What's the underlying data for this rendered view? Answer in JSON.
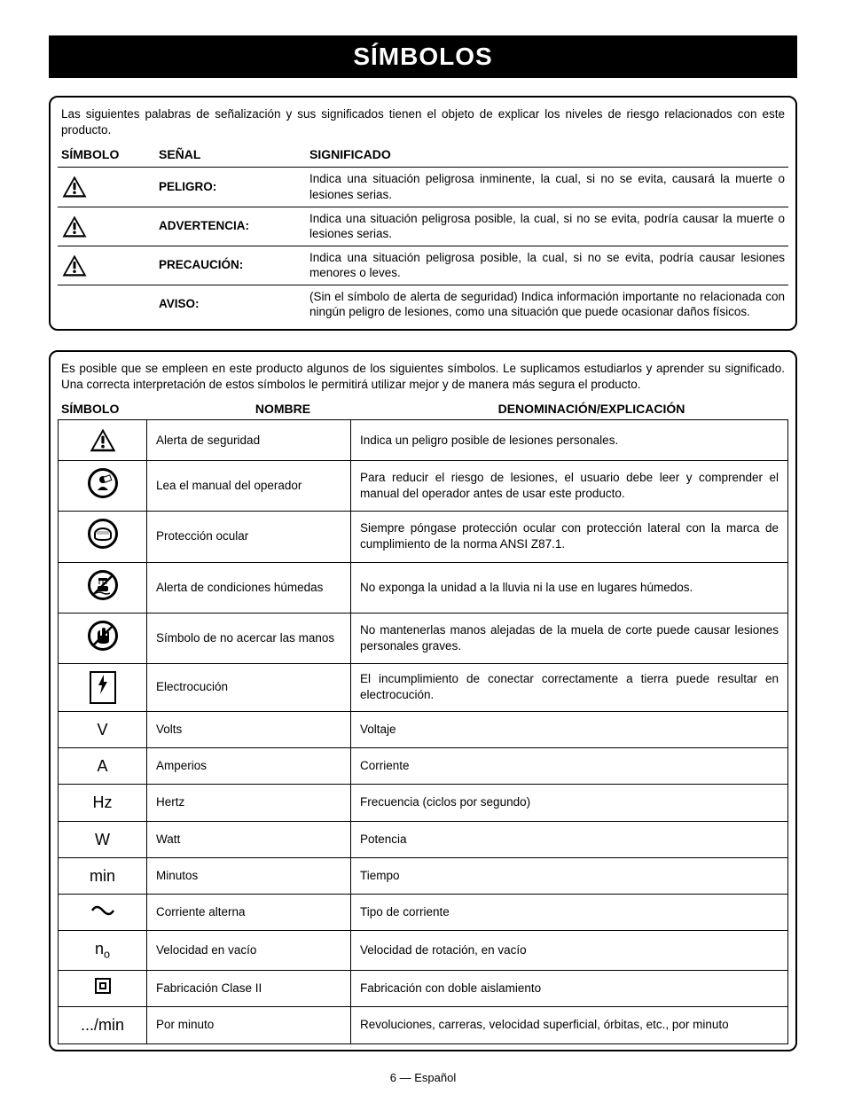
{
  "title": "SÍMBOLOS",
  "intro1": "Las siguientes palabras de señalización y sus significados tienen el objeto de explicar los niveles de riesgo relacionados con este producto.",
  "sig_headers": {
    "symbol": "SÍMBOLO",
    "signal": "SEÑAL",
    "meaning": "SIGNIFICADO"
  },
  "signals": [
    {
      "has_icon": true,
      "signal": "PELIGRO:",
      "meaning": "Indica una situación peligrosa inminente, la cual, si no se evita, causará la muerte o lesiones serias."
    },
    {
      "has_icon": true,
      "signal": "ADVERTENCIA:",
      "meaning": "Indica una situación peligrosa posible, la cual, si no se evita, podría causar la muerte o lesiones serias."
    },
    {
      "has_icon": true,
      "signal": "PRECAUCIÓN:",
      "meaning": "Indica una situación peligrosa posible, la cual, si no se evita, podría causar lesiones menores o leves."
    },
    {
      "has_icon": false,
      "signal": "AVISO:",
      "meaning": "(Sin el símbolo de alerta de seguridad) Indica información importante no relacionada con ningún peligro de lesiones, como una situación que puede ocasionar daños físicos."
    }
  ],
  "intro2": "Es posible que se empleen en este producto algunos de los siguientes símbolos. Le suplicamos estudiarlos y aprender su significado. Una correcta interpretación de estos símbolos le permitirá utilizar mejor y de manera más segura el producto.",
  "sym_headers": {
    "symbol": "SÍMBOLO",
    "name": "NOMBRE",
    "desc": "DENOMINACIÓN/EXPLICACIÓN"
  },
  "symbols": [
    {
      "icon": "alert",
      "name": "Alerta de seguridad",
      "desc": "Indica un peligro posible de lesiones personales."
    },
    {
      "icon": "manual",
      "name": "Lea el manual del operador",
      "desc": "Para reducir el riesgo de lesiones, el usuario debe leer y comprender el manual del operador antes de usar este producto."
    },
    {
      "icon": "eye",
      "name": "Protección ocular",
      "desc": "Siempre póngase protección ocular con protección lateral con la marca de cumplimiento de la norma ANSI Z87.1."
    },
    {
      "icon": "wet",
      "name": "Alerta de condiciones húmedas",
      "desc": "No exponga la unidad a la lluvia ni la use en lugares húmedos."
    },
    {
      "icon": "hands",
      "name": "Símbolo de no acercar las manos",
      "desc": "No mantenerlas manos alejadas de la muela de corte puede causar lesiones personales graves."
    },
    {
      "icon": "electro",
      "name": "Electrocución",
      "desc": "El incumplimiento de conectar correctamente a tierra puede resultar en electrocución."
    },
    {
      "icon": "text",
      "text": "V",
      "name": "Volts",
      "desc": "Voltaje"
    },
    {
      "icon": "text",
      "text": "A",
      "name": "Amperios",
      "desc": "Corriente"
    },
    {
      "icon": "text",
      "text": "Hz",
      "name": "Hertz",
      "desc": "Frecuencia (ciclos por segundo)"
    },
    {
      "icon": "text",
      "text": "W",
      "name": "Watt",
      "desc": "Potencia"
    },
    {
      "icon": "text",
      "text": "min",
      "name": "Minutos",
      "desc": "Tiempo"
    },
    {
      "icon": "ac",
      "name": "Corriente alterna",
      "desc": "Tipo de corriente"
    },
    {
      "icon": "no",
      "name": "Velocidad en vacío",
      "desc": "Velocidad de rotación, en vacío"
    },
    {
      "icon": "class2",
      "name": "Fabricación Clase II",
      "desc": "Fabricación con doble aislamiento"
    },
    {
      "icon": "text",
      "text": ".../min",
      "name": "Por minuto",
      "desc": "Revoluciones, carreras, velocidad superficial, órbitas, etc., por minuto"
    }
  ],
  "footer": "6 — Español"
}
